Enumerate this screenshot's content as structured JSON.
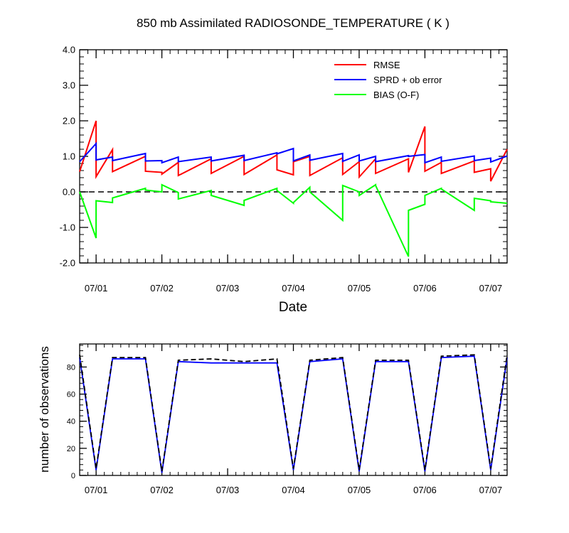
{
  "chart_data": [
    {
      "type": "line",
      "title": "850 mb Assimilated RADIOSONDE_TEMPERATURE ( K )",
      "xlabel": "Date",
      "ylabel": "",
      "x_ticks": [
        "07/01",
        "07/02",
        "07/03",
        "07/04",
        "07/05",
        "07/06",
        "07/07"
      ],
      "xlim": [
        -0.25,
        6.25
      ],
      "ylim": [
        -2.0,
        4.0
      ],
      "y_ticks": [
        "4.0",
        "3.0",
        "2.0",
        "1.0",
        "0.0",
        "-1.0",
        "-2.0"
      ],
      "y_tick_values": [
        4.0,
        3.0,
        2.0,
        1.0,
        0.0,
        -1.0,
        -2.0
      ],
      "reference_line": 0.0,
      "legend_position": "top-right",
      "series": [
        {
          "name": "RMSE",
          "color": "#ff0000",
          "x": [
            -0.25,
            0.0,
            0.0,
            0.25,
            0.25,
            0.75,
            0.75,
            1.0,
            1.0,
            1.25,
            1.25,
            1.75,
            1.75,
            2.25,
            2.25,
            2.75,
            2.75,
            3.0,
            3.0,
            3.25,
            3.25,
            3.75,
            3.75,
            4.0,
            4.0,
            4.25,
            4.25,
            4.75,
            4.75,
            5.0,
            5.0,
            5.25,
            5.25,
            5.75,
            5.75,
            6.0,
            6.0,
            6.25
          ],
          "y": [
            0.57,
            2.0,
            0.43,
            1.19,
            0.57,
            1.0,
            0.58,
            0.55,
            0.5,
            0.83,
            0.46,
            0.93,
            0.52,
            1.0,
            0.49,
            1.04,
            0.62,
            0.48,
            0.85,
            1.0,
            0.46,
            0.96,
            0.49,
            0.85,
            0.42,
            0.93,
            0.52,
            0.93,
            0.55,
            1.84,
            0.58,
            0.83,
            0.52,
            0.87,
            0.55,
            0.65,
            0.3,
            1.2
          ]
        },
        {
          "name": "SPRD + ob error",
          "color": "#0000ff",
          "x": [
            -0.25,
            0.0,
            0.0,
            0.25,
            0.25,
            0.75,
            0.75,
            1.0,
            1.0,
            1.25,
            1.25,
            1.75,
            1.75,
            2.25,
            2.25,
            2.75,
            2.75,
            3.0,
            3.0,
            3.25,
            3.25,
            3.75,
            3.75,
            4.0,
            4.0,
            4.25,
            4.25,
            4.75,
            4.75,
            5.0,
            5.0,
            5.25,
            5.25,
            5.75,
            5.75,
            6.0,
            6.0,
            6.25
          ],
          "y": [
            0.85,
            1.36,
            0.9,
            0.98,
            0.88,
            1.08,
            0.87,
            0.88,
            0.82,
            0.98,
            0.85,
            0.98,
            0.87,
            1.03,
            0.88,
            1.1,
            1.07,
            1.22,
            0.87,
            1.04,
            0.89,
            1.08,
            0.86,
            1.04,
            0.87,
            1.0,
            0.85,
            1.02,
            1.0,
            1.05,
            0.82,
            0.98,
            0.86,
            1.01,
            0.88,
            0.95,
            0.84,
            1.01
          ]
        },
        {
          "name": "BIAS (O-F)",
          "color": "#00ff00",
          "x": [
            -0.25,
            0.0,
            0.0,
            0.25,
            0.25,
            0.75,
            0.75,
            1.0,
            1.0,
            1.25,
            1.25,
            1.75,
            1.75,
            2.25,
            2.25,
            2.75,
            2.75,
            3.0,
            3.0,
            3.25,
            3.25,
            3.75,
            3.75,
            4.0,
            4.0,
            4.25,
            4.25,
            4.75,
            4.75,
            5.0,
            5.0,
            5.25,
            5.25,
            5.75,
            5.75,
            6.0,
            6.0,
            6.25
          ],
          "y": [
            0.0,
            -1.3,
            -0.25,
            -0.3,
            -0.17,
            0.1,
            0.05,
            0.0,
            0.2,
            -0.02,
            -0.2,
            0.04,
            -0.1,
            -0.38,
            -0.24,
            0.1,
            0.04,
            -0.32,
            -0.3,
            0.13,
            0.0,
            -0.8,
            0.18,
            0.0,
            -0.1,
            0.2,
            0.18,
            -1.82,
            -0.52,
            -0.35,
            -0.1,
            0.1,
            0.08,
            -0.52,
            -0.18,
            -0.25,
            -0.28,
            -0.32
          ]
        }
      ]
    },
    {
      "type": "line",
      "title": "",
      "xlabel": "",
      "ylabel": "number of observations",
      "x_ticks": [
        "07/01",
        "07/02",
        "07/03",
        "07/04",
        "07/05",
        "07/06",
        "07/07"
      ],
      "xlim": [
        -0.25,
        6.25
      ],
      "ylim": [
        0,
        97
      ],
      "y_ticks": [
        "80",
        "60",
        "40",
        "20",
        "0"
      ],
      "y_tick_values": [
        80,
        60,
        40,
        20,
        0
      ],
      "series": [
        {
          "name": "",
          "color": "#0000ff",
          "style": "solid",
          "x": [
            -0.25,
            0.0,
            0.25,
            0.75,
            1.0,
            1.25,
            1.75,
            2.25,
            2.75,
            3.0,
            3.25,
            3.75,
            4.0,
            4.25,
            4.75,
            5.0,
            5.25,
            5.75,
            6.0,
            6.25
          ],
          "y": [
            87,
            4,
            86,
            86,
            2,
            84,
            83,
            83,
            83,
            4,
            84,
            86,
            3,
            84,
            84,
            3,
            87,
            88,
            4,
            87
          ]
        },
        {
          "name": "",
          "color": "#000000",
          "style": "dashed",
          "x": [
            -0.25,
            0.0,
            0.25,
            0.75,
            1.0,
            1.25,
            1.75,
            2.25,
            2.75,
            3.0,
            3.25,
            3.75,
            4.0,
            4.25,
            4.75,
            5.0,
            5.25,
            5.75,
            6.0,
            6.25
          ],
          "y": [
            89,
            5,
            87,
            87,
            3,
            85,
            86,
            84,
            86,
            5,
            85,
            87,
            4,
            85,
            85,
            4,
            88,
            89,
            5,
            89
          ]
        }
      ]
    }
  ]
}
